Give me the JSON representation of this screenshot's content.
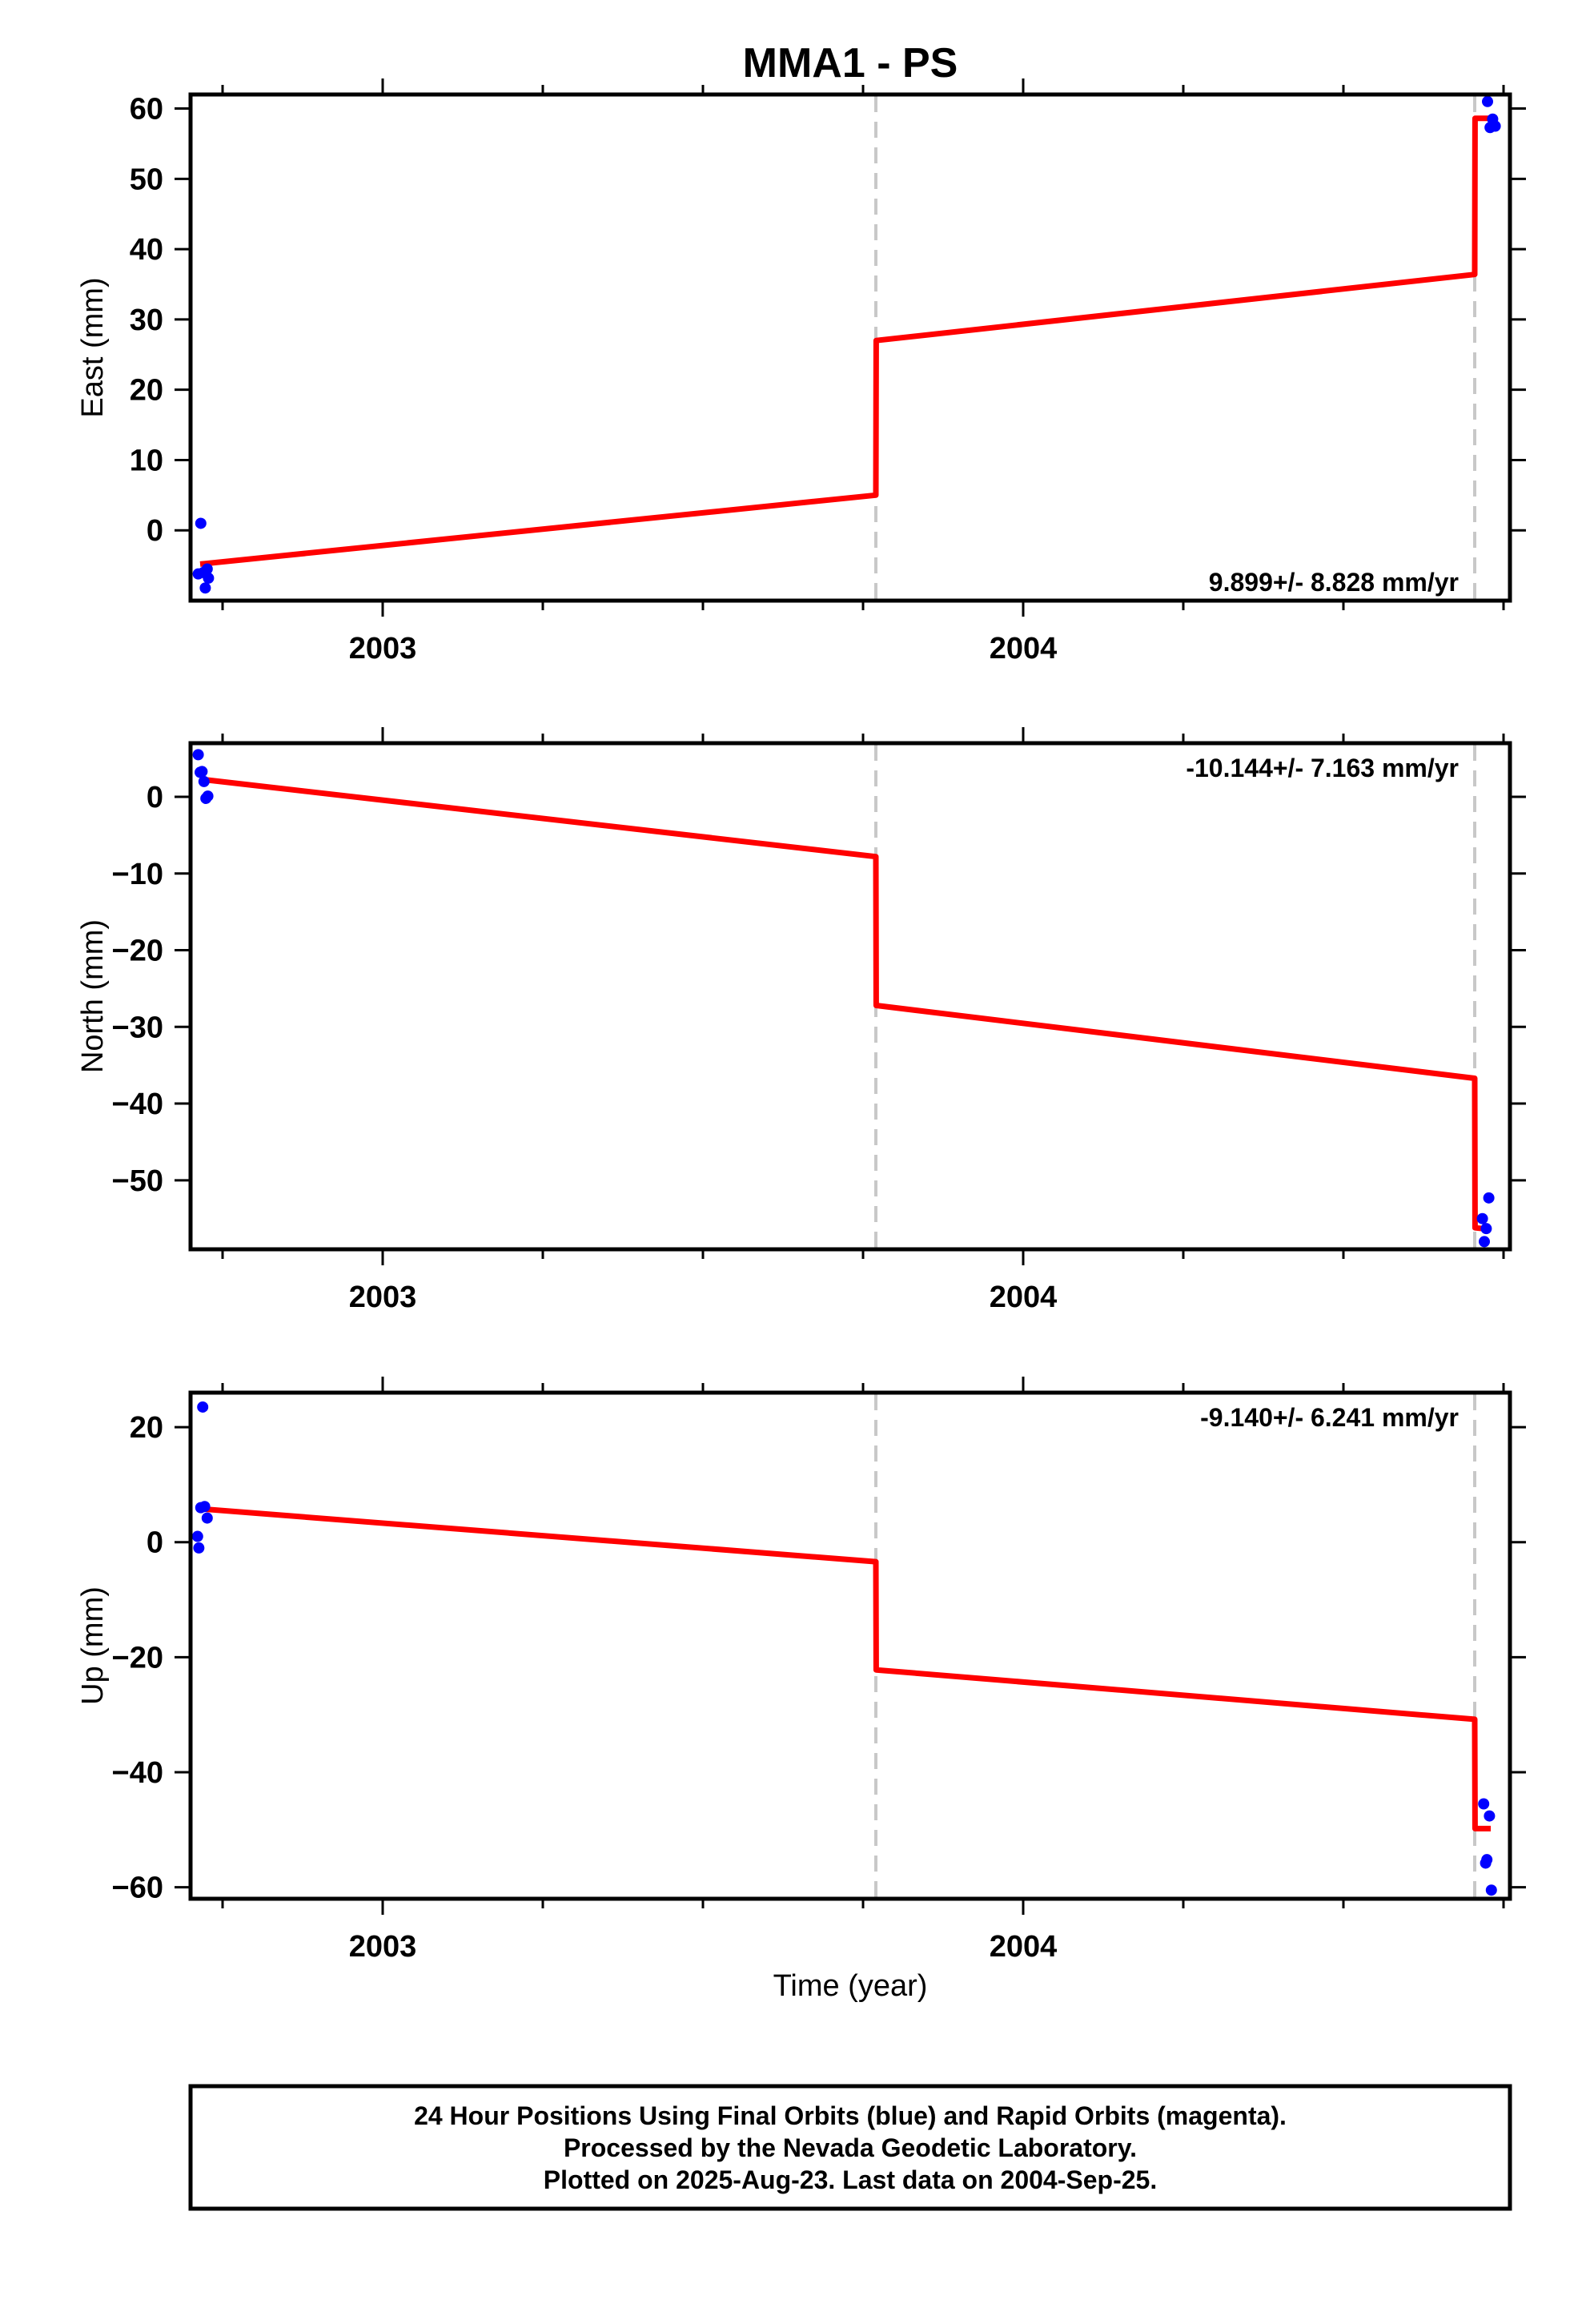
{
  "title": "MMA1 - PS",
  "colors": {
    "fit_line": "#ff0000",
    "final_orbits": "#0000ff",
    "rapid_orbits": "#ff00ff",
    "event_line": "#c8c8c8",
    "frame": "#000000"
  },
  "xlabel": "Time (year)",
  "footer": {
    "line1": "24 Hour Positions Using Final Orbits (blue) and Rapid Orbits (magenta).",
    "line2": "Processed by the Nevada Geodetic Laboratory.",
    "line3": "Plotted on 2025-Aug-23. Last data on 2004-Sep-25."
  },
  "chart_data": [
    {
      "type": "scatter",
      "panel": "east",
      "ylabel": "East (mm)",
      "rate_text": "9.899+/- 8.828 mm/yr",
      "xlim": [
        2002.7,
        2004.76
      ],
      "ylim": [
        -10,
        62
      ],
      "x_ticks": [
        2003,
        2004
      ],
      "y_ticks": [
        0,
        10,
        20,
        30,
        40,
        50,
        60
      ],
      "y_tick_labels": [
        "0",
        "10",
        "20",
        "30",
        "40",
        "50",
        "60"
      ],
      "event_lines": [
        2003.77,
        2004.705
      ],
      "series": [
        {
          "kind": "points",
          "x": [
            2002.712,
            2002.716,
            2002.72,
            2002.723,
            2002.726,
            2002.728
          ],
          "y": [
            -6.2,
            1.0,
            -6.0,
            -8.2,
            -5.5,
            -6.8
          ]
        },
        {
          "kind": "points",
          "x": [
            2004.725,
            2004.729,
            2004.733,
            2004.737
          ],
          "y": [
            61,
            57.3,
            58.5,
            57.5
          ]
        },
        {
          "kind": "fit",
          "x": [
            2002.715,
            2003.77,
            2003.7705,
            2004.705,
            2004.7055,
            2004.74
          ],
          "y": [
            -4.8,
            5.0,
            27.0,
            36.4,
            58.6,
            58.6
          ]
        }
      ]
    },
    {
      "type": "scatter",
      "panel": "north",
      "ylabel": "North (mm)",
      "rate_text": "-10.144+/- 7.163 mm/yr",
      "xlim": [
        2002.7,
        2004.76
      ],
      "ylim": [
        -59,
        7
      ],
      "x_ticks": [
        2003,
        2004
      ],
      "y_ticks": [
        0,
        -10,
        -20,
        -30,
        -40,
        -50
      ],
      "y_tick_labels": [
        "0",
        "−10",
        "−20",
        "−30",
        "−40",
        "−50"
      ],
      "event_lines": [
        2003.77,
        2004.705
      ],
      "series": [
        {
          "kind": "points",
          "x": [
            2002.712,
            2002.715,
            2002.718,
            2002.721,
            2002.724,
            2002.727
          ],
          "y": [
            5.5,
            3.2,
            3.3,
            2.0,
            -0.2,
            0.1
          ]
        },
        {
          "kind": "points",
          "x": [
            2004.717,
            2004.72,
            2004.723,
            2004.727
          ],
          "y": [
            -55.0,
            -58.0,
            -56.3,
            -52.3
          ]
        },
        {
          "kind": "fit",
          "x": [
            2002.715,
            2003.77,
            2003.7705,
            2004.705,
            2004.7055,
            2004.73
          ],
          "y": [
            2.3,
            -7.8,
            -27.2,
            -36.7,
            -56.2,
            -56.4
          ]
        }
      ]
    },
    {
      "type": "scatter",
      "panel": "up",
      "ylabel": "Up (mm)",
      "rate_text": "-9.140+/- 6.241 mm/yr",
      "xlim": [
        2002.7,
        2004.76
      ],
      "ylim": [
        -62,
        26
      ],
      "x_ticks": [
        2003,
        2004
      ],
      "y_ticks": [
        20,
        0,
        -20,
        -40,
        -60
      ],
      "y_tick_labels": [
        "20",
        "0",
        "−20",
        "−40",
        "−60"
      ],
      "event_lines": [
        2003.77,
        2004.705
      ],
      "series": [
        {
          "kind": "points",
          "x": [
            2002.711,
            2002.713,
            2002.716,
            2002.719,
            2002.722,
            2002.726
          ],
          "y": [
            1.0,
            -1.0,
            6.0,
            23.5,
            6.2,
            4.2
          ]
        },
        {
          "kind": "points",
          "x": [
            2004.719,
            2004.722,
            2004.724,
            2004.728,
            2004.731
          ],
          "y": [
            -45.5,
            -55.8,
            -55.2,
            -47.6,
            -60.5
          ]
        },
        {
          "kind": "fit",
          "x": [
            2002.715,
            2003.77,
            2003.7705,
            2004.705,
            2004.7055,
            2004.73
          ],
          "y": [
            5.8,
            -3.4,
            -22.2,
            -30.8,
            -49.8,
            -49.8
          ]
        }
      ]
    }
  ]
}
